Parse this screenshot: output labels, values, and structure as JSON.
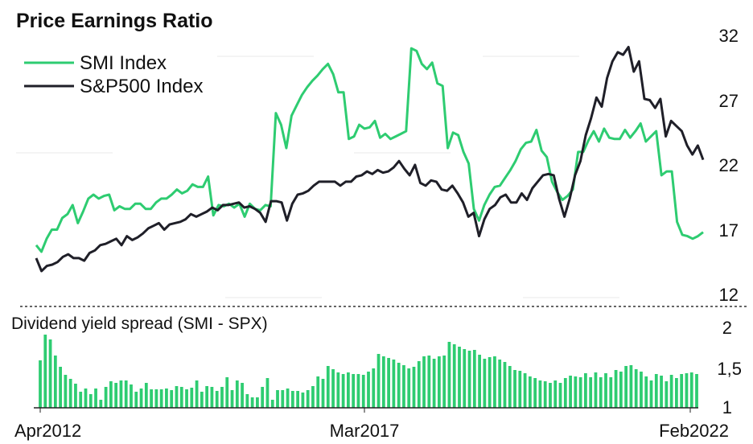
{
  "chart_data": [
    {
      "type": "line",
      "title": "Price Earnings Ratio",
      "y_ticks": [
        "32",
        "27",
        "22",
        "17",
        "12"
      ],
      "ylim": [
        12,
        32
      ],
      "x_range": [
        "Apr2012",
        "Feb2022"
      ],
      "legend_position": "top-left",
      "colors": {
        "smi": "#2ecc71",
        "spx": "#1f1f28"
      },
      "series": [
        {
          "name": "SMI Index",
          "values": [
            15.8,
            15.3,
            16.3,
            17.0,
            17.0,
            17.9,
            18.2,
            18.9,
            17.5,
            18.4,
            19.4,
            19.7,
            19.4,
            19.6,
            19.7,
            18.5,
            18.8,
            18.6,
            18.6,
            19.0,
            19.0,
            18.6,
            18.6,
            19.1,
            19.4,
            19.4,
            19.7,
            20.1,
            19.8,
            20.0,
            20.5,
            20.3,
            20.3,
            21.1,
            18.1,
            18.9,
            18.8,
            19.0,
            18.7,
            19.0,
            18.0,
            19.0,
            18.6,
            18.5,
            18.9,
            18.8,
            26.0,
            25.1,
            23.3,
            25.8,
            26.6,
            27.4,
            28.0,
            28.5,
            28.9,
            29.4,
            29.8,
            29.0,
            27.6,
            27.6,
            24.0,
            24.2,
            25.1,
            24.8,
            24.9,
            25.4,
            24.1,
            24.4,
            24.0,
            24.2,
            24.4,
            24.6,
            31.0,
            30.8,
            29.8,
            29.4,
            29.9,
            28.3,
            28.1,
            23.3,
            24.5,
            24.3,
            23.0,
            22.1,
            18.6,
            17.7,
            18.9,
            19.7,
            20.3,
            20.4,
            21.0,
            21.6,
            22.3,
            23.2,
            23.7,
            23.8,
            24.7,
            23.1,
            22.6,
            20.7,
            19.9,
            19.3,
            19.6,
            20.1,
            23.0,
            23.0,
            23.9,
            24.6,
            23.8,
            24.8,
            24.1,
            24.0,
            24.0,
            24.7,
            24.1,
            24.6,
            25.2,
            23.8,
            24.2,
            24.6,
            21.2,
            21.5,
            21.5,
            17.6,
            16.6,
            16.5,
            16.3,
            16.5,
            16.8
          ]
        },
        {
          "name": "S&P500 Index",
          "values": [
            14.8,
            13.8,
            14.2,
            14.3,
            14.5,
            14.9,
            15.1,
            14.8,
            14.8,
            14.6,
            15.2,
            15.4,
            15.8,
            15.9,
            16.1,
            16.3,
            15.8,
            16.5,
            16.2,
            16.4,
            16.7,
            17.1,
            17.3,
            17.5,
            17.0,
            17.4,
            17.5,
            17.6,
            17.8,
            18.2,
            18.0,
            18.2,
            18.4,
            18.7,
            18.5,
            18.9,
            18.9,
            19.0,
            19.1,
            18.7,
            18.8,
            18.6,
            18.3,
            17.6,
            19.2,
            19.2,
            19.1,
            17.7,
            19.0,
            19.7,
            19.8,
            20.0,
            20.4,
            20.7,
            20.7,
            20.7,
            20.7,
            20.4,
            20.7,
            20.7,
            21.1,
            21.2,
            21.5,
            21.3,
            21.6,
            21.4,
            21.5,
            21.8,
            22.3,
            21.7,
            21.2,
            22.0,
            20.6,
            20.4,
            20.8,
            20.7,
            20.1,
            20.0,
            20.4,
            19.8,
            19.1,
            18.0,
            18.3,
            16.5,
            17.8,
            18.6,
            18.9,
            19.5,
            19.7,
            19.1,
            19.1,
            19.8,
            19.3,
            20.2,
            20.7,
            21.2,
            21.3,
            21.2,
            19.4,
            18.0,
            19.4,
            21.2,
            22.3,
            24.3,
            25.6,
            27.2,
            26.5,
            28.7,
            30.0,
            30.7,
            30.5,
            31.1,
            29.2,
            30.0,
            27.1,
            27.0,
            26.4,
            27.1,
            24.2,
            25.4,
            25.0,
            24.6,
            23.5,
            22.8,
            23.5,
            22.4
          ]
        }
      ]
    },
    {
      "type": "bar",
      "title": "Dividend yield spread (SMI - SPX)",
      "y_ticks": [
        "2",
        "1,5",
        "1"
      ],
      "ylim": [
        1,
        2
      ],
      "x_ticks": [
        "Apr2012",
        "Mar2017",
        "Feb2022"
      ],
      "color": "#2ecc71",
      "values": [
        1.59,
        1.91,
        1.85,
        1.65,
        1.51,
        1.41,
        1.36,
        1.3,
        1.2,
        1.24,
        1.17,
        1.24,
        1.1,
        1.26,
        1.33,
        1.31,
        1.34,
        1.34,
        1.29,
        1.2,
        1.24,
        1.31,
        1.23,
        1.23,
        1.23,
        1.24,
        1.22,
        1.27,
        1.26,
        1.23,
        1.25,
        1.34,
        1.2,
        1.27,
        1.26,
        1.21,
        1.26,
        1.38,
        1.22,
        1.34,
        1.31,
        1.17,
        1.13,
        1.13,
        1.26,
        1.37,
        1.1,
        1.22,
        1.22,
        1.24,
        1.21,
        1.21,
        1.19,
        1.22,
        1.27,
        1.39,
        1.36,
        1.52,
        1.48,
        1.44,
        1.42,
        1.44,
        1.42,
        1.42,
        1.41,
        1.45,
        1.49,
        1.67,
        1.64,
        1.62,
        1.6,
        1.56,
        1.53,
        1.49,
        1.51,
        1.58,
        1.64,
        1.65,
        1.61,
        1.64,
        1.65,
        1.82,
        1.79,
        1.76,
        1.73,
        1.71,
        1.72,
        1.66,
        1.61,
        1.63,
        1.64,
        1.6,
        1.57,
        1.52,
        1.47,
        1.46,
        1.43,
        1.39,
        1.37,
        1.34,
        1.33,
        1.31,
        1.34,
        1.31,
        1.37,
        1.4,
        1.39,
        1.38,
        1.43,
        1.38,
        1.44,
        1.38,
        1.43,
        1.38,
        1.47,
        1.45,
        1.52,
        1.53,
        1.48,
        1.45,
        1.39,
        1.34,
        1.42,
        1.4,
        1.33,
        1.41,
        1.37,
        1.42,
        1.43,
        1.44,
        1.42
      ]
    }
  ]
}
